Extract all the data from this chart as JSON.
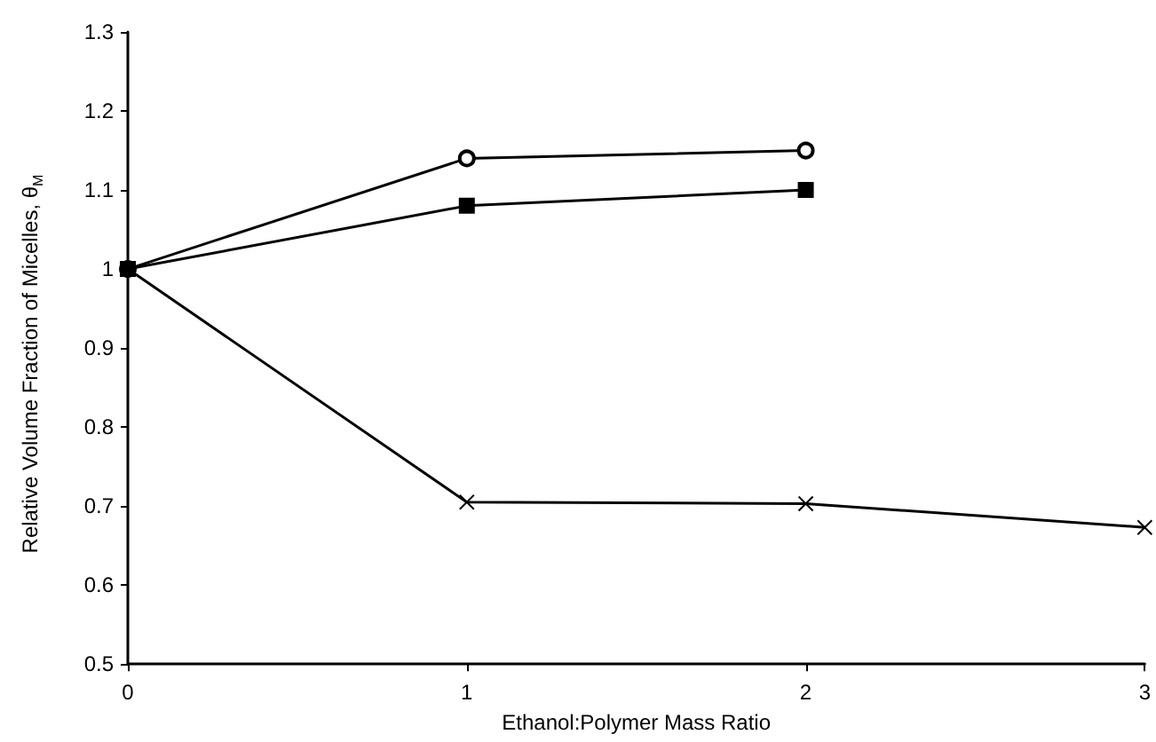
{
  "chart_data": {
    "type": "line",
    "xlabel": "Ethanol:Polymer Mass Ratio",
    "ylabel": "Relative Volume Fraction of Micelles, θ$_{M}$",
    "series": [
      {
        "color": "#000000",
        "marker": "circle",
        "x": [
          0,
          1,
          2
        ],
        "values": [
          1.0,
          1.14,
          1.15
        ]
      },
      {
        "color": "#000000",
        "marker": "square",
        "x": [
          0,
          1,
          2
        ],
        "values": [
          1.0,
          1.08,
          1.1
        ]
      },
      {
        "color": "#000000",
        "marker": "cross",
        "x": [
          0,
          1,
          2,
          3
        ],
        "values": [
          1.0,
          0.705,
          0.703,
          0.673
        ]
      }
    ],
    "xlim": [
      0,
      3
    ],
    "xticks": [
      0,
      1,
      2,
      3
    ],
    "ylim": [
      0.5,
      1.3
    ],
    "yticks": [
      0.5,
      0.6,
      0.7,
      0.8,
      0.9,
      1,
      1.1,
      1.2,
      1.3
    ],
    "grid": false,
    "line_style": "solid"
  }
}
